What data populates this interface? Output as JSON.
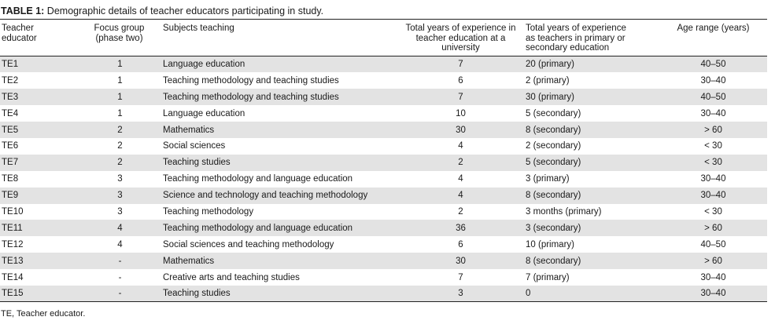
{
  "caption": {
    "label": "TABLE 1:",
    "text": " Demographic details of teacher educators participating in study."
  },
  "headers": {
    "col1": "Teacher educator",
    "col2": "Focus group (phase two)",
    "col3": "Subjects teaching",
    "col4": "Total years of experience in teacher education at a university",
    "col5": "Total years of experience as teachers in primary or secondary education",
    "col6": "Age range (years)"
  },
  "rows": [
    {
      "id": "TE1",
      "group": "1",
      "subjects": "Language education",
      "uni_years": "7",
      "school_years": "20 (primary)",
      "age": "40–50"
    },
    {
      "id": "TE2",
      "group": "1",
      "subjects": "Teaching methodology and teaching studies",
      "uni_years": "6",
      "school_years": "2 (primary)",
      "age": "30–40"
    },
    {
      "id": "TE3",
      "group": "1",
      "subjects": "Teaching methodology and teaching studies",
      "uni_years": "7",
      "school_years": "30 (primary)",
      "age": "40–50"
    },
    {
      "id": "TE4",
      "group": "1",
      "subjects": "Language education",
      "uni_years": "10",
      "school_years": "5 (secondary)",
      "age": "30–40"
    },
    {
      "id": "TE5",
      "group": "2",
      "subjects": "Mathematics",
      "uni_years": "30",
      "school_years": "8 (secondary)",
      "age": "> 60"
    },
    {
      "id": "TE6",
      "group": "2",
      "subjects": "Social sciences",
      "uni_years": "4",
      "school_years": "2 (secondary)",
      "age": "< 30"
    },
    {
      "id": "TE7",
      "group": "2",
      "subjects": "Teaching studies",
      "uni_years": "2",
      "school_years": "5 (secondary)",
      "age": "< 30"
    },
    {
      "id": "TE8",
      "group": "3",
      "subjects": "Teaching methodology and language education",
      "uni_years": "4",
      "school_years": "3 (primary)",
      "age": "30–40"
    },
    {
      "id": "TE9",
      "group": "3",
      "subjects": "Science and technology and teaching methodology",
      "uni_years": "4",
      "school_years": "8 (secondary)",
      "age": "30–40"
    },
    {
      "id": "TE10",
      "group": "3",
      "subjects": "Teaching methodology",
      "uni_years": "2",
      "school_years": "3 months (primary)",
      "age": "< 30"
    },
    {
      "id": "TE11",
      "group": "4",
      "subjects": "Teaching methodology and language education",
      "uni_years": "36",
      "school_years": "3 (secondary)",
      "age": "> 60"
    },
    {
      "id": "TE12",
      "group": "4",
      "subjects": "Social sciences and teaching methodology",
      "uni_years": "6",
      "school_years": "10 (primary)",
      "age": "40–50"
    },
    {
      "id": "TE13",
      "group": "-",
      "subjects": "Mathematics",
      "uni_years": "30",
      "school_years": "8 (secondary)",
      "age": "> 60"
    },
    {
      "id": "TE14",
      "group": "-",
      "subjects": "Creative arts and teaching studies",
      "uni_years": "7",
      "school_years": "7 (primary)",
      "age": "30–40"
    },
    {
      "id": "TE15",
      "group": "-",
      "subjects": "Teaching studies",
      "uni_years": "3",
      "school_years": "0",
      "age": "30–40"
    }
  ],
  "footnote": "TE, Teacher educator."
}
